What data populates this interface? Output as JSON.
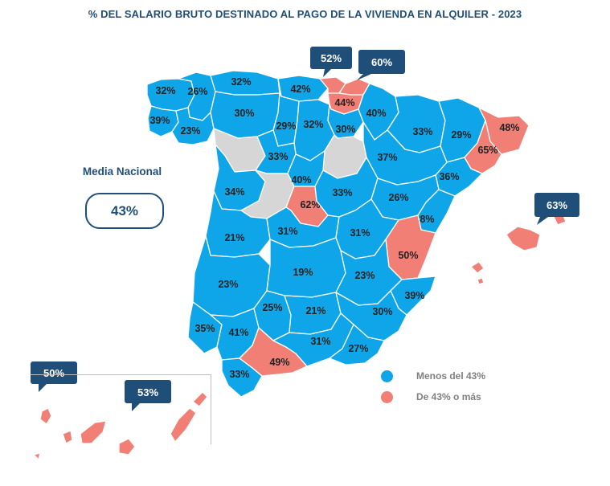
{
  "title": "% DEL SALARIO BRUTO DESTINADO AL PAGO DE LA VIVIENDA EN ALQUILER - 2023",
  "media": {
    "label": "Media Nacional",
    "value": "43%"
  },
  "colors": {
    "below": "#0ea5e9",
    "above": "#f17f76",
    "no_data": "#d6d6d6",
    "dark": "#1f4e79"
  },
  "legend": [
    {
      "label": "Menos del 43%",
      "color": "#0ea5e9"
    },
    {
      "label": "De 43% o más",
      "color": "#f17f76"
    }
  ],
  "provinces": [
    {
      "name": "A Coruña",
      "label": "32%",
      "cls": "below"
    },
    {
      "name": "Lugo",
      "label": "26%",
      "cls": "below"
    },
    {
      "name": "Pontevedra",
      "label": "39%",
      "cls": "below"
    },
    {
      "name": "Ourense",
      "label": "23%",
      "cls": "below"
    },
    {
      "name": "Asturias",
      "label": "32%",
      "cls": "below"
    },
    {
      "name": "Cantabria",
      "label": "42%",
      "cls": "below"
    },
    {
      "name": "León",
      "label": "30%",
      "cls": "below"
    },
    {
      "name": "Palencia",
      "label": "29%",
      "cls": "below"
    },
    {
      "name": "Burgos",
      "label": "32%",
      "cls": "below"
    },
    {
      "name": "Bizkaia",
      "label": "52%",
      "cls": "above"
    },
    {
      "name": "Gipuzkoa",
      "label": "60%",
      "cls": "above"
    },
    {
      "name": "Álava",
      "label": "44%",
      "cls": "above"
    },
    {
      "name": "La Rioja",
      "label": "30%",
      "cls": "below"
    },
    {
      "name": "Navarra",
      "label": "40%",
      "cls": "below"
    },
    {
      "name": "Huesca",
      "label": "33%",
      "cls": "below"
    },
    {
      "name": "Lleida",
      "label": "29%",
      "cls": "below"
    },
    {
      "name": "Girona",
      "label": "48%",
      "cls": "above"
    },
    {
      "name": "Barcelona",
      "label": "65%",
      "cls": "above"
    },
    {
      "name": "Tarragona",
      "label": "36%",
      "cls": "below"
    },
    {
      "name": "Zamora",
      "label": "",
      "cls": "nodata"
    },
    {
      "name": "Valladolid",
      "label": "33%",
      "cls": "below"
    },
    {
      "name": "Soria",
      "label": "",
      "cls": "nodata"
    },
    {
      "name": "Zaragoza",
      "label": "37%",
      "cls": "below"
    },
    {
      "name": "Salamanca",
      "label": "34%",
      "cls": "below"
    },
    {
      "name": "Ávila",
      "label": "",
      "cls": "nodata"
    },
    {
      "name": "Segovia",
      "label": "40%",
      "cls": "below"
    },
    {
      "name": "Madrid",
      "label": "62%",
      "cls": "above"
    },
    {
      "name": "Guadalajara",
      "label": "33%",
      "cls": "below"
    },
    {
      "name": "Teruel",
      "label": "26%",
      "cls": "below"
    },
    {
      "name": "Castellón",
      "label": "28%",
      "cls": "below"
    },
    {
      "name": "Cáceres",
      "label": "21%",
      "cls": "below"
    },
    {
      "name": "Toledo",
      "label": "31%",
      "cls": "below"
    },
    {
      "name": "Cuenca",
      "label": "31%",
      "cls": "below"
    },
    {
      "name": "Valencia",
      "label": "50%",
      "cls": "above"
    },
    {
      "name": "Badajoz",
      "label": "23%",
      "cls": "below"
    },
    {
      "name": "Ciudad Real",
      "label": "19%",
      "cls": "below"
    },
    {
      "name": "Albacete",
      "label": "23%",
      "cls": "below"
    },
    {
      "name": "Alicante",
      "label": "39%",
      "cls": "below"
    },
    {
      "name": "Huelva",
      "label": "35%",
      "cls": "below"
    },
    {
      "name": "Sevilla",
      "label": "41%",
      "cls": "below"
    },
    {
      "name": "Córdoba",
      "label": "25%",
      "cls": "below"
    },
    {
      "name": "Jaén",
      "label": "21%",
      "cls": "below"
    },
    {
      "name": "Murcia",
      "label": "30%",
      "cls": "below"
    },
    {
      "name": "Cádiz",
      "label": "33%",
      "cls": "below"
    },
    {
      "name": "Málaga",
      "label": "49%",
      "cls": "above"
    },
    {
      "name": "Granada",
      "label": "31%",
      "cls": "below"
    },
    {
      "name": "Almería",
      "label": "27%",
      "cls": "below"
    },
    {
      "name": "Illes Balears",
      "label": "63%",
      "cls": "above"
    },
    {
      "name": "Santa Cruz de Tenerife",
      "label": "50%",
      "cls": "above"
    },
    {
      "name": "Las Palmas",
      "label": "53%",
      "cls": "above"
    }
  ]
}
